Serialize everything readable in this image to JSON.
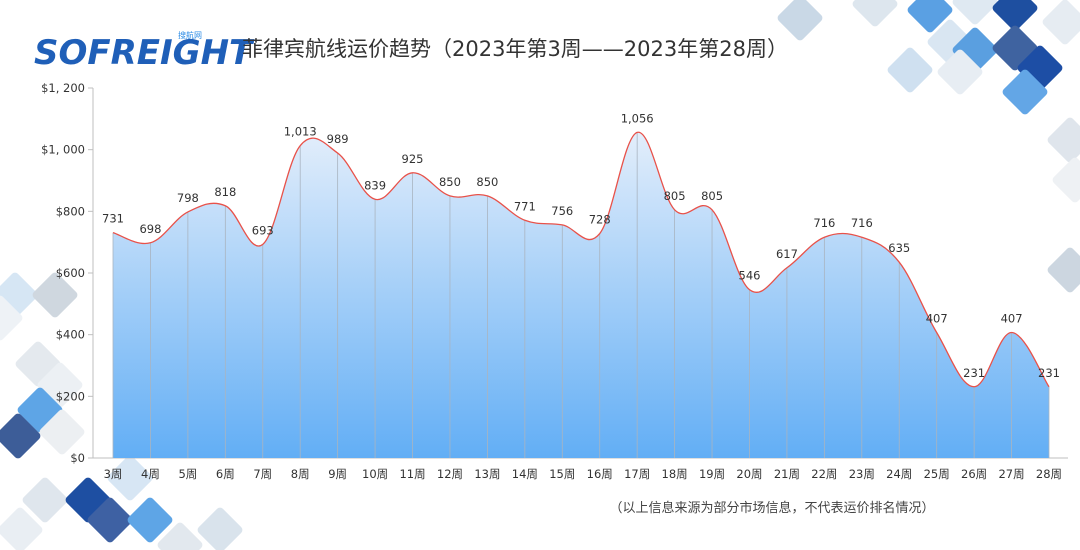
{
  "brand": {
    "logo_text": "SOFREIGHT",
    "logo_sub": "搜航网",
    "primary_color": "#1f5fb8",
    "accent_color": "#2d8ce6"
  },
  "title": "菲律宾航线运价趋势（2023年第3周——2023年第28周）",
  "footnote": "（以上信息来源为部分市场信息，不代表运价排名情况）",
  "chart_data": {
    "type": "area",
    "categories": [
      "3周",
      "4周",
      "5周",
      "6周",
      "7周",
      "8周",
      "9周",
      "10周",
      "11周",
      "12周",
      "13周",
      "14周",
      "15周",
      "16周",
      "17周",
      "18周",
      "19周",
      "20周",
      "21周",
      "22周",
      "23周",
      "24周",
      "25周",
      "26周",
      "27周",
      "28周"
    ],
    "series": [
      {
        "values": [
          731,
          698,
          798,
          818,
          693,
          1013,
          989,
          839,
          925,
          850,
          850,
          771,
          756,
          728,
          1056,
          805,
          805,
          546,
          617,
          716,
          716,
          635,
          407,
          231,
          407,
          231
        ]
      }
    ],
    "data_labels": [
      "731",
      "698",
      "798",
      "818",
      "693",
      "1,013",
      "989",
      "839",
      "925",
      "850",
      "850",
      "771",
      "756",
      "728",
      "1,056",
      "805",
      "805",
      "546",
      "617",
      "716",
      "716",
      "635",
      "407",
      "231",
      "407",
      "231"
    ],
    "ylim": [
      0,
      1200
    ],
    "yticks": [
      0,
      200,
      400,
      600,
      800,
      1000,
      1200
    ],
    "ytick_labels": [
      "$0",
      "$200",
      "$400",
      "$600",
      "$800",
      "$1, 000",
      "$1, 200"
    ],
    "grid": false,
    "line_color": "#e8524a",
    "fill_top_color": "#e3eefb",
    "fill_bottom_color": "#62aef5"
  }
}
